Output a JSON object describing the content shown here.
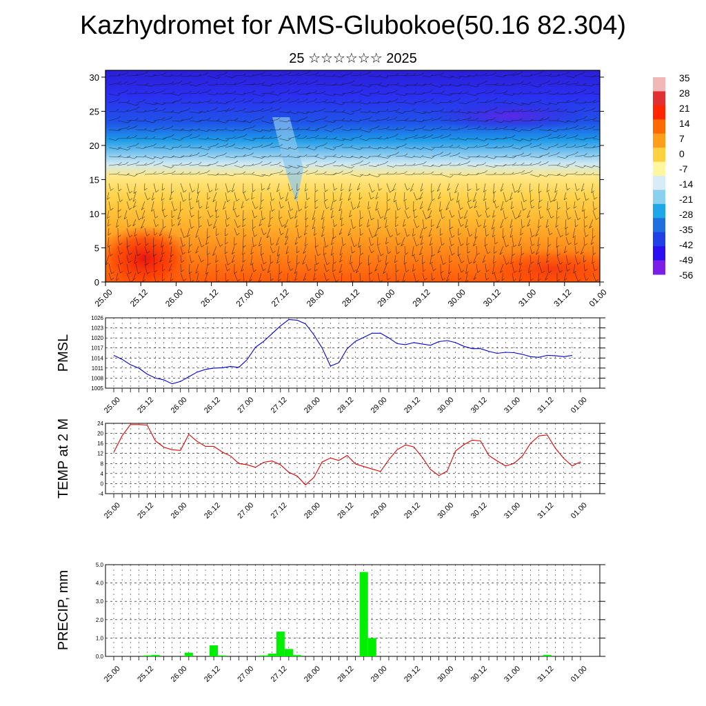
{
  "title": "Kazhydromet for AMS-Glubokoe(50.16 82.304)",
  "subtitle": "25 ☆☆☆☆☆☆ 2025",
  "chart_data": [
    {
      "type": "heatmap",
      "title": "",
      "xlabel": "",
      "ylabel": "",
      "x_ticks": [
        "25.00",
        "25.12",
        "26.00",
        "26.12",
        "27.00",
        "27.12",
        "28.00",
        "28.12",
        "29.00",
        "29.12",
        "30.00",
        "30.12",
        "31.00",
        "31.12",
        "01.00"
      ],
      "y_ticks": [
        0,
        5,
        10,
        15,
        20,
        25,
        30
      ],
      "ylim": [
        0,
        31
      ],
      "colorbar_labels": [
        "35",
        "28",
        "21",
        "14",
        "7",
        "0",
        "-7",
        "-14",
        "-21",
        "-28",
        "-35",
        "-42",
        "-49",
        "-56"
      ],
      "colorbar_colors": [
        "#f2b8b8",
        "#e23030",
        "#ff2600",
        "#ff6a00",
        "#ff9e1a",
        "#ffd040",
        "#fff7a0",
        "#d8ecf8",
        "#8cd0f0",
        "#1ea8e8",
        "#1f6fe0",
        "#2040e8",
        "#2a10f0",
        "#7a1ee8"
      ],
      "overlay": "wind barbs"
    },
    {
      "type": "line",
      "title": "",
      "ylabel": "PMSL",
      "xlabel": "",
      "x_ticks": [
        "25.00",
        "25.12",
        "26.00",
        "26.12",
        "27.00",
        "27.12",
        "28.00",
        "28.12",
        "29.00",
        "29.12",
        "30.00",
        "30.12",
        "31.00",
        "31.12",
        "01.00"
      ],
      "y_ticks": [
        1005,
        1008,
        1011,
        1014,
        1017,
        1020,
        1023,
        1026
      ],
      "ylim": [
        1005,
        1026
      ],
      "color": "#0000cc",
      "values": [
        1014.8,
        1013.6,
        1012,
        1011,
        1009.2,
        1008,
        1007.5,
        1006.3,
        1007,
        1008.4,
        1009.8,
        1010.6,
        1011,
        1011.1,
        1011.5,
        1011.2,
        1013.5,
        1017.2,
        1019,
        1021.3,
        1023.6,
        1025.5,
        1025.3,
        1024.2,
        1021,
        1017,
        1011.6,
        1012.6,
        1016.8,
        1019,
        1020.2,
        1021.4,
        1021.4,
        1020,
        1018.3,
        1018,
        1018.6,
        1018.2,
        1017.8,
        1018.9,
        1019.2,
        1018.6,
        1017.5,
        1016.8,
        1016.8,
        1016,
        1015.4,
        1015.7,
        1015.6,
        1015.1,
        1014.4,
        1014.2,
        1014.8,
        1014.7,
        1014.4,
        1014.8
      ]
    },
    {
      "type": "line",
      "title": "",
      "ylabel": "TEMP at 2 M",
      "xlabel": "",
      "x_ticks": [
        "25.00",
        "25.12",
        "26.00",
        "26.12",
        "27.00",
        "27.12",
        "28.00",
        "28.12",
        "29.00",
        "29.12",
        "30.00",
        "30.12",
        "31.00",
        "31.12",
        "01.00"
      ],
      "y_ticks": [
        -4,
        0,
        4,
        8,
        12,
        16,
        20,
        24
      ],
      "ylim": [
        -4,
        24
      ],
      "color": "#dd0000",
      "values": [
        12.5,
        19,
        23.5,
        23.5,
        23.3,
        17,
        14.5,
        13.5,
        13.2,
        19.6,
        16.8,
        14.8,
        14.8,
        12.6,
        11,
        8,
        7.5,
        6.5,
        8.5,
        9,
        7.5,
        4.5,
        3,
        -0.5,
        2.4,
        8.6,
        10.2,
        9.2,
        11.2,
        7.8,
        6.8,
        5.8,
        4.8,
        9.5,
        13.5,
        15.4,
        14.6,
        10.5,
        5.6,
        3.2,
        5,
        13,
        15.5,
        17.3,
        17,
        11.2,
        9,
        7,
        8,
        10.9,
        16,
        19,
        19.4,
        14,
        10,
        7,
        8.7
      ]
    },
    {
      "type": "bar",
      "title": "",
      "ylabel": "PRECIP, mm",
      "xlabel": "",
      "x_ticks": [
        "25.00",
        "25.12",
        "26.00",
        "26.12",
        "27.00",
        "27.12",
        "28.00",
        "28.12",
        "29.00",
        "29.12",
        "30.00",
        "30.12",
        "31.00",
        "31.12",
        "01.00"
      ],
      "y_ticks": [
        "0.0",
        "1.0",
        "2.0",
        "3.0",
        "4.0",
        "5.0"
      ],
      "ylim": [
        0,
        5
      ],
      "color": "#00ee00",
      "bars": [
        {
          "t": 4,
          "v": 0.05
        },
        {
          "t": 5,
          "v": 0.08
        },
        {
          "t": 9,
          "v": 0.2
        },
        {
          "t": 12,
          "v": 0.6
        },
        {
          "t": 13,
          "v": 0.05
        },
        {
          "t": 18,
          "v": 0.05
        },
        {
          "t": 19,
          "v": 0.15
        },
        {
          "t": 20,
          "v": 1.35
        },
        {
          "t": 21,
          "v": 0.4
        },
        {
          "t": 22,
          "v": 0.07
        },
        {
          "t": 30,
          "v": 4.6
        },
        {
          "t": 31,
          "v": 1.0
        },
        {
          "t": 52,
          "v": 0.08
        }
      ]
    }
  ]
}
